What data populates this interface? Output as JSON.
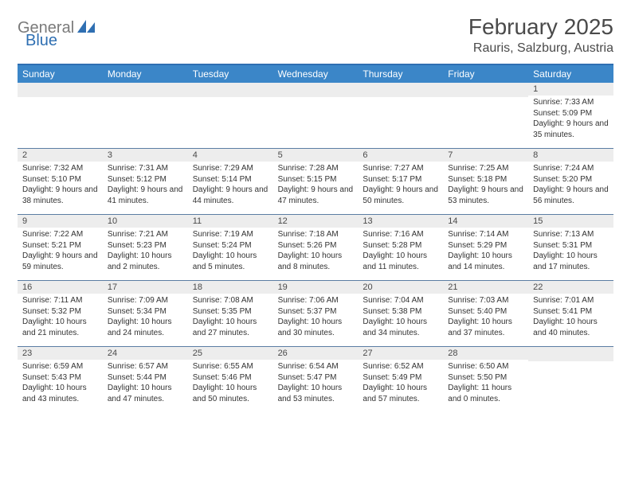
{
  "logo": {
    "general": "General",
    "blue": "Blue"
  },
  "title": "February 2025",
  "location": "Rauris, Salzburg, Austria",
  "colors": {
    "header_bg": "#3b86c8",
    "header_border": "#2f6fb2",
    "row_divider": "#5b7da3",
    "daynum_bg": "#ededed",
    "text": "#333333",
    "logo_gray": "#7a7a7a",
    "logo_blue": "#2f6fb2"
  },
  "day_names": [
    "Sunday",
    "Monday",
    "Tuesday",
    "Wednesday",
    "Thursday",
    "Friday",
    "Saturday"
  ],
  "weeks": [
    [
      {
        "day": "",
        "sunrise": "",
        "sunset": "",
        "daylight": ""
      },
      {
        "day": "",
        "sunrise": "",
        "sunset": "",
        "daylight": ""
      },
      {
        "day": "",
        "sunrise": "",
        "sunset": "",
        "daylight": ""
      },
      {
        "day": "",
        "sunrise": "",
        "sunset": "",
        "daylight": ""
      },
      {
        "day": "",
        "sunrise": "",
        "sunset": "",
        "daylight": ""
      },
      {
        "day": "",
        "sunrise": "",
        "sunset": "",
        "daylight": ""
      },
      {
        "day": "1",
        "sunrise": "Sunrise: 7:33 AM",
        "sunset": "Sunset: 5:09 PM",
        "daylight": "Daylight: 9 hours and 35 minutes."
      }
    ],
    [
      {
        "day": "2",
        "sunrise": "Sunrise: 7:32 AM",
        "sunset": "Sunset: 5:10 PM",
        "daylight": "Daylight: 9 hours and 38 minutes."
      },
      {
        "day": "3",
        "sunrise": "Sunrise: 7:31 AM",
        "sunset": "Sunset: 5:12 PM",
        "daylight": "Daylight: 9 hours and 41 minutes."
      },
      {
        "day": "4",
        "sunrise": "Sunrise: 7:29 AM",
        "sunset": "Sunset: 5:14 PM",
        "daylight": "Daylight: 9 hours and 44 minutes."
      },
      {
        "day": "5",
        "sunrise": "Sunrise: 7:28 AM",
        "sunset": "Sunset: 5:15 PM",
        "daylight": "Daylight: 9 hours and 47 minutes."
      },
      {
        "day": "6",
        "sunrise": "Sunrise: 7:27 AM",
        "sunset": "Sunset: 5:17 PM",
        "daylight": "Daylight: 9 hours and 50 minutes."
      },
      {
        "day": "7",
        "sunrise": "Sunrise: 7:25 AM",
        "sunset": "Sunset: 5:18 PM",
        "daylight": "Daylight: 9 hours and 53 minutes."
      },
      {
        "day": "8",
        "sunrise": "Sunrise: 7:24 AM",
        "sunset": "Sunset: 5:20 PM",
        "daylight": "Daylight: 9 hours and 56 minutes."
      }
    ],
    [
      {
        "day": "9",
        "sunrise": "Sunrise: 7:22 AM",
        "sunset": "Sunset: 5:21 PM",
        "daylight": "Daylight: 9 hours and 59 minutes."
      },
      {
        "day": "10",
        "sunrise": "Sunrise: 7:21 AM",
        "sunset": "Sunset: 5:23 PM",
        "daylight": "Daylight: 10 hours and 2 minutes."
      },
      {
        "day": "11",
        "sunrise": "Sunrise: 7:19 AM",
        "sunset": "Sunset: 5:24 PM",
        "daylight": "Daylight: 10 hours and 5 minutes."
      },
      {
        "day": "12",
        "sunrise": "Sunrise: 7:18 AM",
        "sunset": "Sunset: 5:26 PM",
        "daylight": "Daylight: 10 hours and 8 minutes."
      },
      {
        "day": "13",
        "sunrise": "Sunrise: 7:16 AM",
        "sunset": "Sunset: 5:28 PM",
        "daylight": "Daylight: 10 hours and 11 minutes."
      },
      {
        "day": "14",
        "sunrise": "Sunrise: 7:14 AM",
        "sunset": "Sunset: 5:29 PM",
        "daylight": "Daylight: 10 hours and 14 minutes."
      },
      {
        "day": "15",
        "sunrise": "Sunrise: 7:13 AM",
        "sunset": "Sunset: 5:31 PM",
        "daylight": "Daylight: 10 hours and 17 minutes."
      }
    ],
    [
      {
        "day": "16",
        "sunrise": "Sunrise: 7:11 AM",
        "sunset": "Sunset: 5:32 PM",
        "daylight": "Daylight: 10 hours and 21 minutes."
      },
      {
        "day": "17",
        "sunrise": "Sunrise: 7:09 AM",
        "sunset": "Sunset: 5:34 PM",
        "daylight": "Daylight: 10 hours and 24 minutes."
      },
      {
        "day": "18",
        "sunrise": "Sunrise: 7:08 AM",
        "sunset": "Sunset: 5:35 PM",
        "daylight": "Daylight: 10 hours and 27 minutes."
      },
      {
        "day": "19",
        "sunrise": "Sunrise: 7:06 AM",
        "sunset": "Sunset: 5:37 PM",
        "daylight": "Daylight: 10 hours and 30 minutes."
      },
      {
        "day": "20",
        "sunrise": "Sunrise: 7:04 AM",
        "sunset": "Sunset: 5:38 PM",
        "daylight": "Daylight: 10 hours and 34 minutes."
      },
      {
        "day": "21",
        "sunrise": "Sunrise: 7:03 AM",
        "sunset": "Sunset: 5:40 PM",
        "daylight": "Daylight: 10 hours and 37 minutes."
      },
      {
        "day": "22",
        "sunrise": "Sunrise: 7:01 AM",
        "sunset": "Sunset: 5:41 PM",
        "daylight": "Daylight: 10 hours and 40 minutes."
      }
    ],
    [
      {
        "day": "23",
        "sunrise": "Sunrise: 6:59 AM",
        "sunset": "Sunset: 5:43 PM",
        "daylight": "Daylight: 10 hours and 43 minutes."
      },
      {
        "day": "24",
        "sunrise": "Sunrise: 6:57 AM",
        "sunset": "Sunset: 5:44 PM",
        "daylight": "Daylight: 10 hours and 47 minutes."
      },
      {
        "day": "25",
        "sunrise": "Sunrise: 6:55 AM",
        "sunset": "Sunset: 5:46 PM",
        "daylight": "Daylight: 10 hours and 50 minutes."
      },
      {
        "day": "26",
        "sunrise": "Sunrise: 6:54 AM",
        "sunset": "Sunset: 5:47 PM",
        "daylight": "Daylight: 10 hours and 53 minutes."
      },
      {
        "day": "27",
        "sunrise": "Sunrise: 6:52 AM",
        "sunset": "Sunset: 5:49 PM",
        "daylight": "Daylight: 10 hours and 57 minutes."
      },
      {
        "day": "28",
        "sunrise": "Sunrise: 6:50 AM",
        "sunset": "Sunset: 5:50 PM",
        "daylight": "Daylight: 11 hours and 0 minutes."
      },
      {
        "day": "",
        "sunrise": "",
        "sunset": "",
        "daylight": ""
      }
    ]
  ]
}
